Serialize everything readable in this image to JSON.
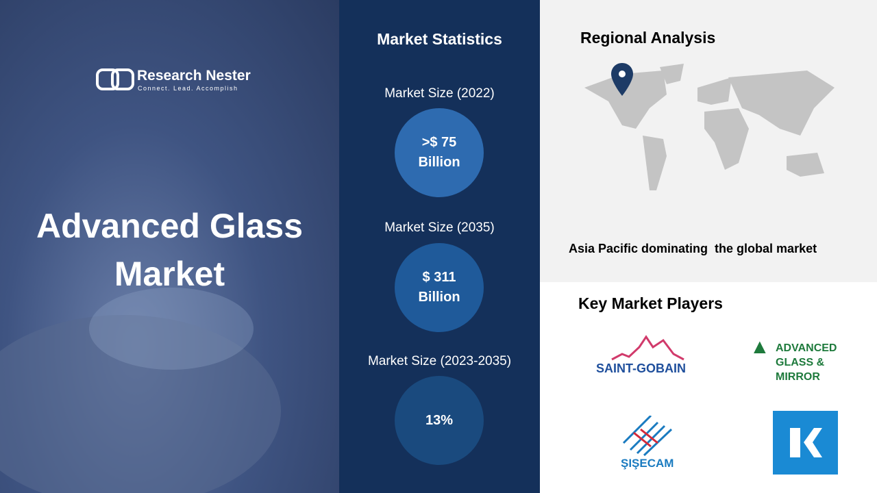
{
  "brand": {
    "name": "Research Nester",
    "tagline": "Connect. Lead. Accomplish"
  },
  "title": "Advanced Glass Market",
  "statistics": {
    "heading": "Market Statistics",
    "items": [
      {
        "label": "Market Size (2022)",
        "value": ">$ 75 Billion"
      },
      {
        "label": "Market Size (2035)",
        "value": "$ 311 Billion"
      },
      {
        "label": "Market Size (2023-2035)",
        "value": "13%"
      }
    ]
  },
  "regional": {
    "heading": "Regional Analysis",
    "caption": "Asia Pacific dominating  the global market"
  },
  "players": {
    "heading": "Key Market Players",
    "logos": [
      "SAINT-GOBAIN",
      "ADVANCED GLASS & MIRROR",
      "ŞIŞECAM"
    ]
  }
}
